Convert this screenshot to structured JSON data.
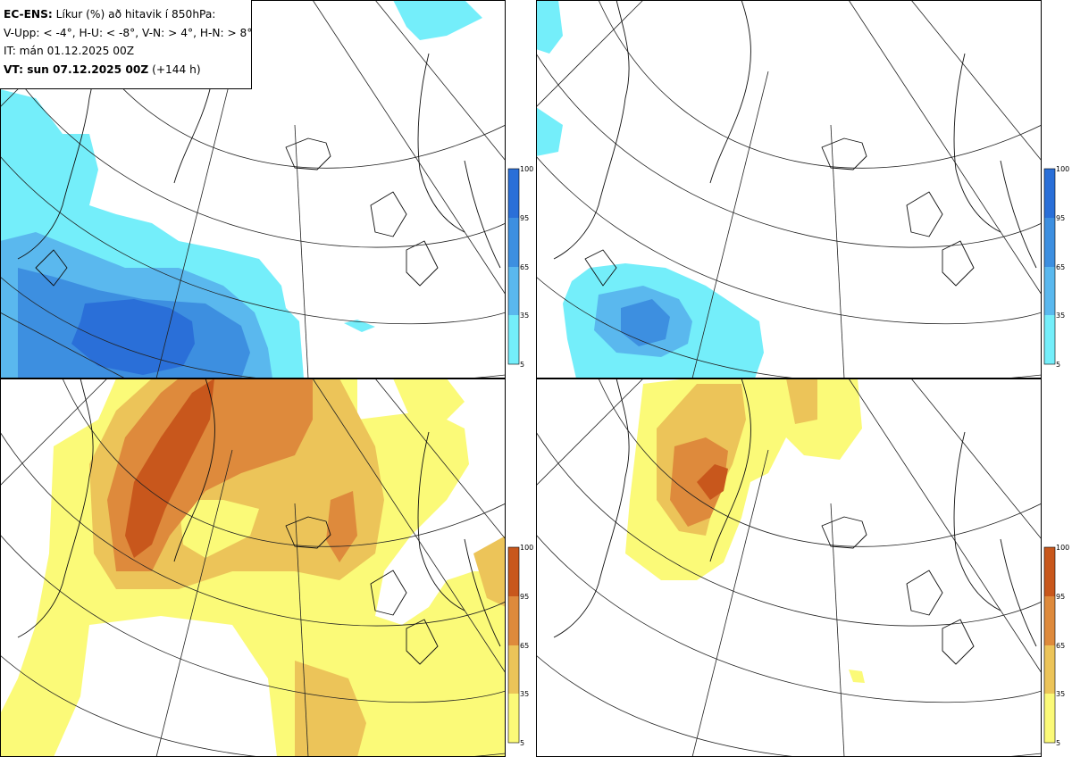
{
  "header": {
    "model": "EC-ENS:",
    "title": "Líkur (%) að hitavik í 850hPa:",
    "legend_line": "V-Upp: < -4°, H-U: < -8°, V-N: > 4°, H-N: > 8°",
    "init_time": "IT: mán 01.12.2025 00Z",
    "valid_label": "VT: sun 07.12.2025 00Z",
    "lead_time": "(+144 h)"
  },
  "panels": [
    {
      "id": "V-Upp",
      "description_key": "cold anomaly < -4°",
      "palette": "blue"
    },
    {
      "id": "H-U",
      "description_key": "cold anomaly < -8°",
      "palette": "blue"
    },
    {
      "id": "V-N",
      "description_key": "warm anomaly > 4°",
      "palette": "orange"
    },
    {
      "id": "H-N",
      "description_key": "warm anomaly > 8°",
      "palette": "orange"
    }
  ],
  "colorbar": {
    "ticks": [
      "100",
      "95",
      "65",
      "35",
      "5"
    ],
    "blue_colors": [
      "#2a6fd8",
      "#3d8fe0",
      "#5ab8ee",
      "#74eefa"
    ],
    "orange_colors": [
      "#c8571c",
      "#de8a3c",
      "#ecc459",
      "#fbfa78"
    ]
  }
}
